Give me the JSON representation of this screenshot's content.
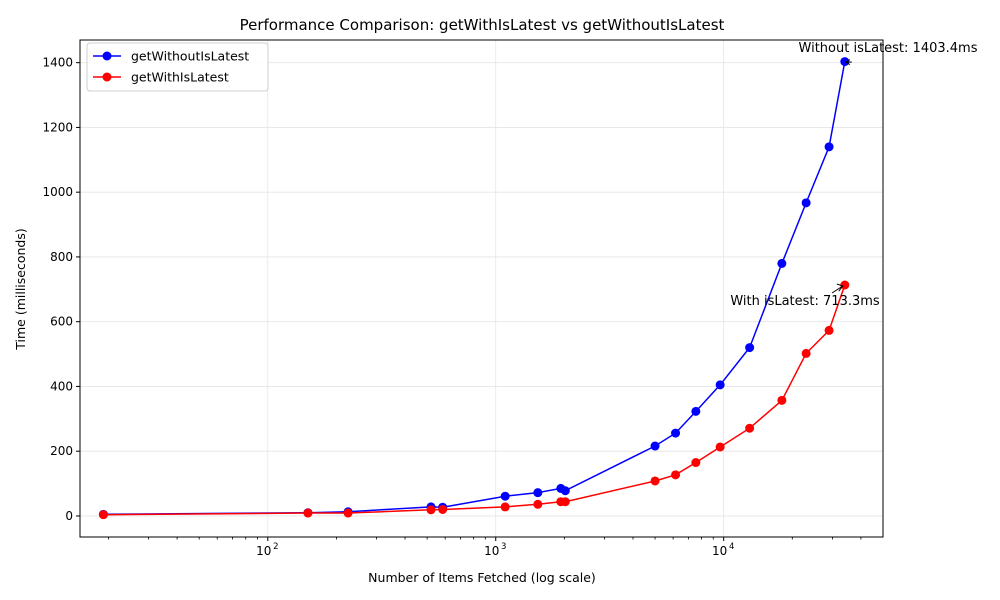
{
  "chart_data": {
    "type": "line",
    "title": "Performance Comparison: getWithIsLatest vs getWithoutIsLatest",
    "xlabel": "Number of Items Fetched (log scale)",
    "ylabel": "Time (milliseconds)",
    "xscale": "log",
    "xlim": [
      15,
      50000
    ],
    "ylim": [
      -65,
      1470
    ],
    "xticks": [
      100,
      1000,
      10000
    ],
    "xtick_labels": [
      "10",
      "10",
      "10"
    ],
    "xtick_exponents": [
      "2",
      "3",
      "4"
    ],
    "yticks": [
      0,
      200,
      400,
      600,
      800,
      1000,
      1200,
      1400
    ],
    "ytick_labels": [
      "0",
      "200",
      "400",
      "600",
      "800",
      "1000",
      "1200",
      "1400"
    ],
    "grid": true,
    "legend_position": "upper-left",
    "series": [
      {
        "name": "getWithoutIsLatest",
        "color": "#0000ff",
        "points": [
          [
            19,
            5
          ],
          [
            150,
            10
          ],
          [
            225,
            13
          ],
          [
            520,
            28
          ],
          [
            585,
            27
          ],
          [
            1100,
            61
          ],
          [
            1530,
            72
          ],
          [
            1930,
            85
          ],
          [
            2020,
            78
          ],
          [
            5000,
            216
          ],
          [
            6150,
            256
          ],
          [
            7550,
            323
          ],
          [
            9650,
            405
          ],
          [
            13000,
            520
          ],
          [
            18000,
            780
          ],
          [
            23000,
            967
          ],
          [
            29000,
            1140
          ],
          [
            34000,
            1403.4
          ]
        ]
      },
      {
        "name": "getWithIsLatest",
        "color": "#ff0000",
        "points": [
          [
            19,
            4
          ],
          [
            150,
            9
          ],
          [
            225,
            9
          ],
          [
            520,
            19
          ],
          [
            585,
            20
          ],
          [
            1100,
            28
          ],
          [
            1530,
            36
          ],
          [
            1930,
            44
          ],
          [
            2020,
            44
          ],
          [
            5000,
            108
          ],
          [
            6150,
            127
          ],
          [
            7550,
            165
          ],
          [
            9650,
            213
          ],
          [
            13000,
            271
          ],
          [
            18000,
            357
          ],
          [
            23000,
            502
          ],
          [
            29000,
            573
          ],
          [
            34000,
            713.3
          ]
        ]
      }
    ],
    "annotations": [
      {
        "text": "Without isLatest: 1403.4ms",
        "x": 34000,
        "y": 1403.4,
        "series": "getWithoutIsLatest"
      },
      {
        "text": "With isLatest: 713.3ms",
        "x": 34000,
        "y": 713.3,
        "series": "getWithIsLatest"
      }
    ]
  }
}
